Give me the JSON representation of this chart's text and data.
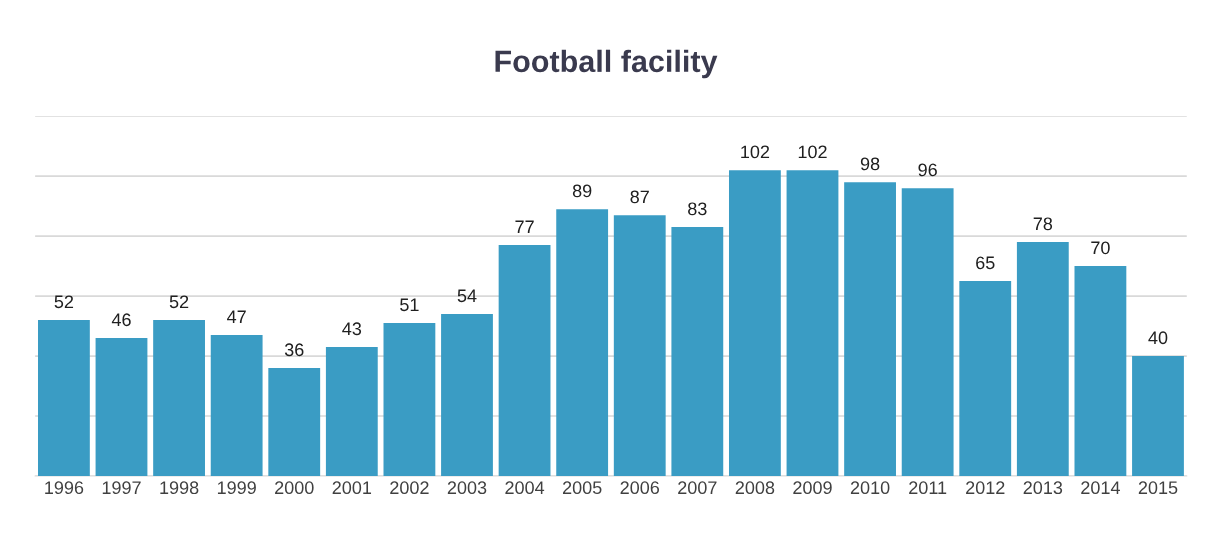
{
  "chart_data": {
    "type": "bar",
    "title": "Football facility",
    "categories": [
      "1996",
      "1997",
      "1998",
      "1999",
      "2000",
      "2001",
      "2002",
      "2003",
      "2004",
      "2005",
      "2006",
      "2007",
      "2008",
      "2009",
      "2010",
      "2011",
      "2012",
      "2013",
      "2014",
      "2015"
    ],
    "values": [
      52,
      46,
      52,
      47,
      36,
      43,
      51,
      54,
      77,
      89,
      87,
      83,
      102,
      102,
      98,
      96,
      65,
      78,
      70,
      40
    ],
    "color": "#3a9cc4",
    "ylim": [
      0,
      120
    ],
    "yticks": [
      {
        "value": 0,
        "label": null
      },
      {
        "value": 20,
        "label": null
      },
      {
        "value": 40,
        "label": null
      },
      {
        "value": 60,
        "label": null
      },
      {
        "value": 80,
        "label": null
      },
      {
        "value": 100,
        "label": null
      },
      {
        "value": 120,
        "label": null
      }
    ],
    "grid": "y",
    "data_labels": true,
    "tick_labels": "x"
  }
}
